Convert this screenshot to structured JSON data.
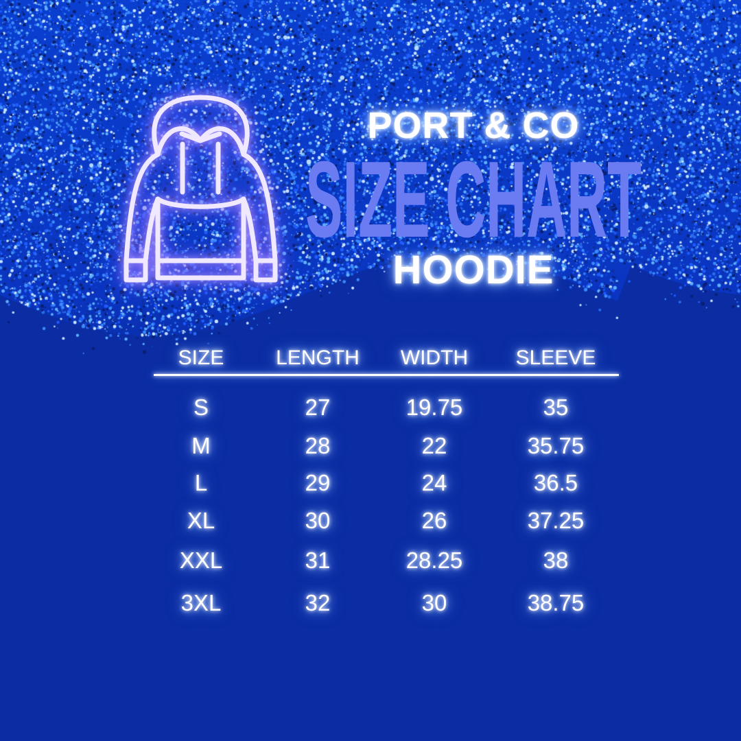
{
  "brand": "PORT & CO",
  "title": "SIZE CHART",
  "subtitle": "HOODIE",
  "icon": "hoodie-icon",
  "colors": {
    "background": "#0b2ca3",
    "title": "#6b7cf2",
    "icon_glow": "#b49bff"
  },
  "table": {
    "headers": [
      "SIZE",
      "LENGTH",
      "WIDTH",
      "SLEEVE"
    ],
    "rows": [
      [
        "S",
        "27",
        "19.75",
        "35"
      ],
      [
        "M",
        "28",
        "22",
        "35.75"
      ],
      [
        "L",
        "29",
        "24",
        "36.5"
      ],
      [
        "XL",
        "30",
        "26",
        "37.25"
      ],
      [
        "XXL",
        "31",
        "28.25",
        "38"
      ],
      [
        "3XL",
        "32",
        "30",
        "38.75"
      ]
    ]
  }
}
